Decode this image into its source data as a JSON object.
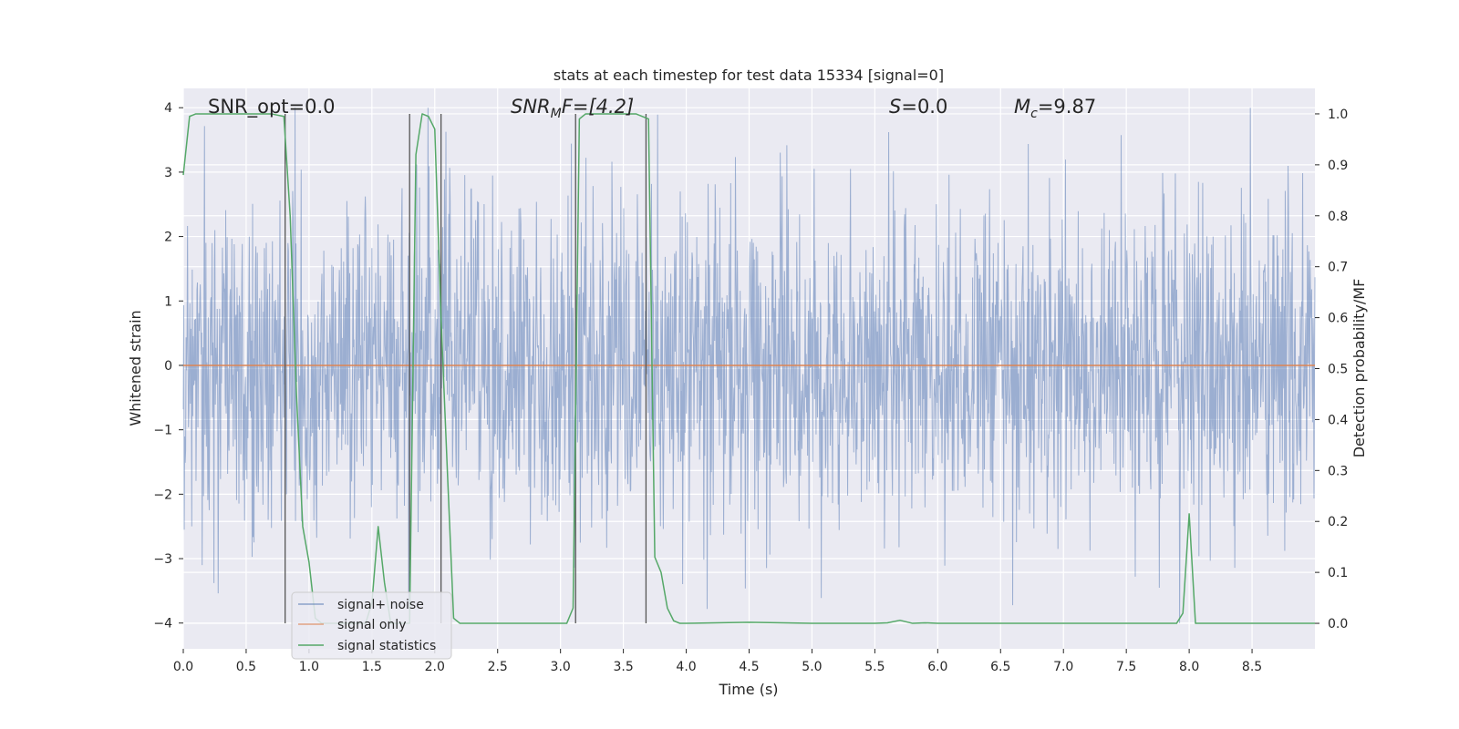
{
  "chart_data": {
    "type": "line",
    "title": "stats at each timestep for test data 15334 [signal=0]",
    "xlabel": "Time (s)",
    "ylabel_left": "Whitened strain",
    "ylabel_right": "Detection probability/MF",
    "xlim": [
      0.0,
      9.0
    ],
    "ylim_left": [
      -4.4,
      4.3
    ],
    "ylim_right": [
      -0.05,
      1.05
    ],
    "xticks": [
      "0.0",
      "0.5",
      "1.0",
      "1.5",
      "2.0",
      "2.5",
      "3.0",
      "3.5",
      "4.0",
      "4.5",
      "5.0",
      "5.5",
      "6.0",
      "6.5",
      "7.0",
      "7.5",
      "8.0",
      "8.5"
    ],
    "xtick_values": [
      0,
      0.5,
      1,
      1.5,
      2,
      2.5,
      3,
      3.5,
      4,
      4.5,
      5,
      5.5,
      6,
      6.5,
      7,
      7.5,
      8,
      8.5
    ],
    "yticks_left": [
      "−4",
      "−3",
      "−2",
      "−1",
      "0",
      "1",
      "2",
      "3",
      "4"
    ],
    "ytick_left_values": [
      -4,
      -3,
      -2,
      -1,
      0,
      1,
      2,
      3,
      4
    ],
    "yticks_right": [
      "0.0",
      "0.1",
      "0.2",
      "0.3",
      "0.4",
      "0.5",
      "0.6",
      "0.7",
      "0.8",
      "0.9",
      "1.0"
    ],
    "ytick_right_values": [
      0,
      0.1,
      0.2,
      0.3,
      0.4,
      0.5,
      0.6,
      0.7,
      0.8,
      0.9,
      1.0
    ],
    "grid": true,
    "legend_position": "lower-left",
    "annotations": {
      "snr_opt": "SNR_opt=0.0",
      "snr_mf_main": "SNR",
      "snr_mf_sub": "M",
      "snr_mf_rest": "F=[4.2]",
      "s_italic": "S",
      "s_rest": "=0.0",
      "mc_main": "M",
      "mc_sub": "c",
      "mc_rest": "=9.87"
    },
    "series": [
      {
        "name": "signal+ noise",
        "color": "#4c72b0",
        "axis": "left",
        "style": "dense noise, approx. range ±2.5 with peaks to ±4"
      },
      {
        "name": "signal only",
        "color": "#dd8452",
        "axis": "left",
        "x": [
          0.0,
          9.0
        ],
        "y": [
          0.0,
          0.0
        ]
      },
      {
        "name": "signal statistics",
        "color": "#55a868",
        "axis": "right",
        "x": [
          0.0,
          0.05,
          0.1,
          0.2,
          0.3,
          0.5,
          0.7,
          0.8,
          0.85,
          0.9,
          0.95,
          1.0,
          1.05,
          1.1,
          1.15,
          1.2,
          1.3,
          1.4,
          1.45,
          1.5,
          1.55,
          1.6,
          1.65,
          1.7,
          1.75,
          1.8,
          1.85,
          1.9,
          1.95,
          2.0,
          2.05,
          2.1,
          2.15,
          2.2,
          2.3,
          2.5,
          3.0,
          3.05,
          3.1,
          3.15,
          3.2,
          3.3,
          3.5,
          3.6,
          3.7,
          3.75,
          3.8,
          3.85,
          3.9,
          3.95,
          4.0,
          4.5,
          5.0,
          5.5,
          5.6,
          5.7,
          5.8,
          5.9,
          6.0,
          6.5,
          7.0,
          7.5,
          7.9,
          7.95,
          8.0,
          8.05,
          8.1,
          8.5,
          9.0
        ],
        "y": [
          0.88,
          0.995,
          1.0,
          1.0,
          1.0,
          1.0,
          1.0,
          0.995,
          0.8,
          0.45,
          0.19,
          0.12,
          0.01,
          0.0,
          0.0,
          0.0,
          0.0,
          0.0,
          0.0,
          0.04,
          0.19,
          0.08,
          0.0,
          0.0,
          0.0,
          0.0,
          0.92,
          1.0,
          0.995,
          0.97,
          0.6,
          0.3,
          0.01,
          0.0,
          0.0,
          0.0,
          0.0,
          0.0,
          0.03,
          0.99,
          1.0,
          1.0,
          1.0,
          1.0,
          0.99,
          0.13,
          0.1,
          0.03,
          0.005,
          0.0,
          0.0,
          0.002,
          0.0,
          0.0,
          0.001,
          0.006,
          0.0,
          0.001,
          0.0,
          0.0,
          0.0,
          0.0,
          0.0,
          0.02,
          0.215,
          0.0,
          0.0,
          0.0,
          0.0
        ]
      }
    ],
    "vertical_markers": [
      0.81,
      1.8,
      2.05,
      3.12,
      3.68
    ]
  }
}
